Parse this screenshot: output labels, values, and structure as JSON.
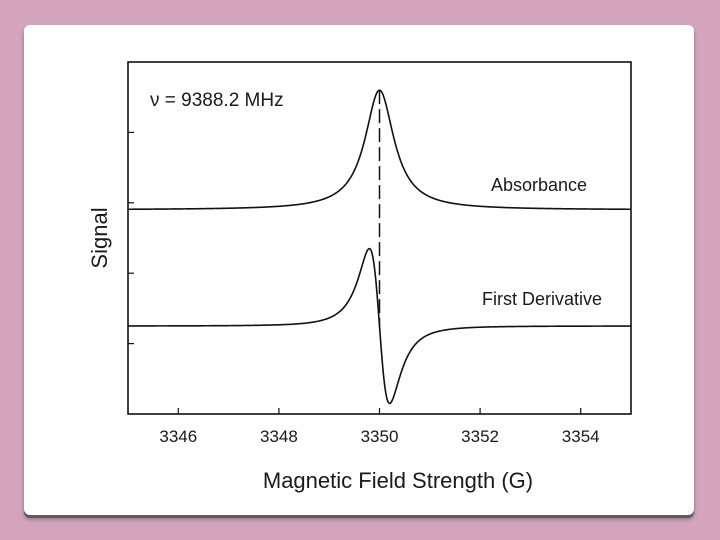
{
  "chart_data": {
    "type": "line",
    "xlabel": "Magnetic Field Strength (G)",
    "ylabel": "Signal",
    "xlim": [
      3345,
      3355
    ],
    "x_ticks": [
      "3346",
      "3348",
      "3350",
      "3352",
      "3354"
    ],
    "annotation_frequency": "ν = 9388.2 MHz",
    "center_field": 3350,
    "linewidth_hwhm": 0.35,
    "grid": false,
    "legend": "none",
    "series": [
      {
        "name": "Absorbance",
        "shape": "lorentzian",
        "baseline_fraction": 0.58,
        "amplitude_fraction": 0.34
      },
      {
        "name": "First Derivative",
        "shape": "lorentzian-derivative",
        "baseline_fraction": 0.25,
        "amplitude_fraction": 0.22
      }
    ],
    "colors": {
      "line": "#111111",
      "frame": "#111111"
    }
  }
}
